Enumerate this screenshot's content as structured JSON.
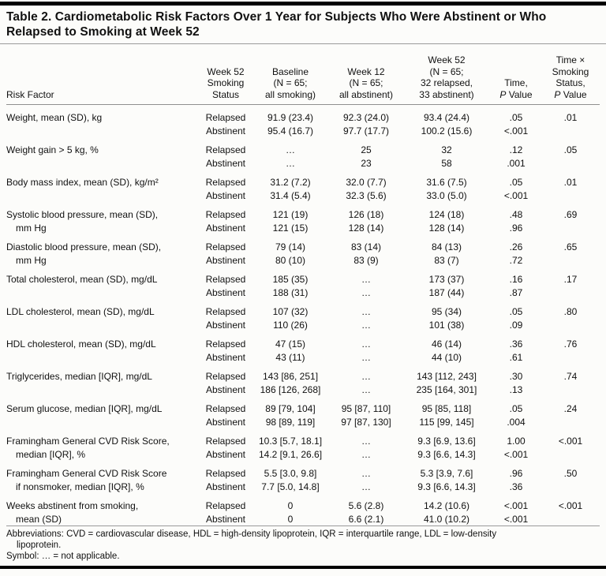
{
  "title": "Table 2. Cardiometabolic Risk Factors Over 1 Year for Subjects Who Were Abstinent or Who\nRelapsed to Smoking at Week 52",
  "header": {
    "risk_factor": "Risk Factor",
    "smoking_status": [
      "Week 52",
      "Smoking",
      "Status"
    ],
    "baseline": [
      "Baseline",
      "(N = 65;",
      "all smoking)"
    ],
    "week12": [
      "Week 12",
      "(N = 65;",
      "all abstinent)"
    ],
    "week52": [
      "Week 52",
      "(N = 65;",
      "32 relapsed,",
      "33 abstinent)"
    ],
    "time_p": {
      "lines": [
        "Time,"
      ],
      "p": "P",
      "value": " Value"
    },
    "interaction_p": {
      "lines": [
        "Time ×",
        "Smoking",
        "Status,"
      ],
      "p": "P",
      "value": " Value"
    }
  },
  "rows": [
    {
      "factor": "Weight, mean (SD), kg",
      "sub": [
        {
          "status": "Relapsed",
          "baseline": "91.9 (23.4)",
          "week12": "92.3 (24.0)",
          "week52": "93.4 (24.4)",
          "time_p": ".05",
          "interaction_p": ".01"
        },
        {
          "status": "Abstinent",
          "baseline": "95.4 (16.7)",
          "week12": "97.7 (17.7)",
          "week52": "100.2 (15.6)",
          "time_p": "<.001",
          "interaction_p": ""
        }
      ]
    },
    {
      "factor": "Weight gain > 5 kg, %",
      "sub": [
        {
          "status": "Relapsed",
          "baseline": "…",
          "week12": "25",
          "week52": "32",
          "time_p": ".12",
          "interaction_p": ".05"
        },
        {
          "status": "Abstinent",
          "baseline": "…",
          "week12": "23",
          "week52": "58",
          "time_p": ".001",
          "interaction_p": ""
        }
      ]
    },
    {
      "factor": "Body mass index, mean (SD), kg/m²",
      "sub": [
        {
          "status": "Relapsed",
          "baseline": "31.2 (7.2)",
          "week12": "32.0 (7.7)",
          "week52": "31.6 (7.5)",
          "time_p": ".05",
          "interaction_p": ".01"
        },
        {
          "status": "Abstinent",
          "baseline": "31.4 (5.4)",
          "week12": "32.3 (5.6)",
          "week52": "33.0 (5.0)",
          "time_p": "<.001",
          "interaction_p": ""
        }
      ]
    },
    {
      "factor": "Systolic blood pressure, mean (SD),\nmm Hg",
      "sub": [
        {
          "status": "Relapsed",
          "baseline": "121 (19)",
          "week12": "126 (18)",
          "week52": "124 (18)",
          "time_p": ".48",
          "interaction_p": ".69"
        },
        {
          "status": "Abstinent",
          "baseline": "121 (15)",
          "week12": "128 (14)",
          "week52": "128 (14)",
          "time_p": ".96",
          "interaction_p": ""
        }
      ]
    },
    {
      "factor": "Diastolic blood pressure, mean (SD),\nmm Hg",
      "sub": [
        {
          "status": "Relapsed",
          "baseline": "79 (14)",
          "week12": "83 (14)",
          "week52": "84 (13)",
          "time_p": ".26",
          "interaction_p": ".65"
        },
        {
          "status": "Abstinent",
          "baseline": "80 (10)",
          "week12": "83 (9)",
          "week52": "83 (7)",
          "time_p": ".72",
          "interaction_p": ""
        }
      ]
    },
    {
      "factor": "Total cholesterol, mean (SD), mg/dL",
      "sub": [
        {
          "status": "Relapsed",
          "baseline": "185 (35)",
          "week12": "…",
          "week52": "173 (37)",
          "time_p": ".16",
          "interaction_p": ".17"
        },
        {
          "status": "Abstinent",
          "baseline": "188 (31)",
          "week12": "…",
          "week52": "187 (44)",
          "time_p": ".87",
          "interaction_p": ""
        }
      ]
    },
    {
      "factor": "LDL cholesterol, mean (SD), mg/dL",
      "sub": [
        {
          "status": "Relapsed",
          "baseline": "107 (32)",
          "week12": "…",
          "week52": "95 (34)",
          "time_p": ".05",
          "interaction_p": ".80"
        },
        {
          "status": "Abstinent",
          "baseline": "110 (26)",
          "week12": "…",
          "week52": "101 (38)",
          "time_p": ".09",
          "interaction_p": ""
        }
      ]
    },
    {
      "factor": "HDL cholesterol, mean (SD), mg/dL",
      "sub": [
        {
          "status": "Relapsed",
          "baseline": "47 (15)",
          "week12": "…",
          "week52": "46 (14)",
          "time_p": ".36",
          "interaction_p": ".76"
        },
        {
          "status": "Abstinent",
          "baseline": "43 (11)",
          "week12": "…",
          "week52": "44 (10)",
          "time_p": ".61",
          "interaction_p": ""
        }
      ]
    },
    {
      "factor": "Triglycerides, median [IQR], mg/dL",
      "sub": [
        {
          "status": "Relapsed",
          "baseline": "143 [86, 251]",
          "week12": "…",
          "week52": "143 [112, 243]",
          "time_p": ".30",
          "interaction_p": ".74"
        },
        {
          "status": "Abstinent",
          "baseline": "186 [126, 268]",
          "week12": "…",
          "week52": "235 [164, 301]",
          "time_p": ".13",
          "interaction_p": ""
        }
      ]
    },
    {
      "factor": "Serum glucose, median [IQR], mg/dL",
      "sub": [
        {
          "status": "Relapsed",
          "baseline": "89 [79, 104]",
          "week12": "95 [87, 110]",
          "week52": "95 [85, 118]",
          "time_p": ".05",
          "interaction_p": ".24"
        },
        {
          "status": "Abstinent",
          "baseline": "98 [89, 119]",
          "week12": "97 [87, 130]",
          "week52": "115 [99, 145]",
          "time_p": ".004",
          "interaction_p": ""
        }
      ]
    },
    {
      "factor": "Framingham General CVD Risk Score,\nmedian [IQR], %",
      "sub": [
        {
          "status": "Relapsed",
          "baseline": "10.3 [5.7, 18.1]",
          "week12": "…",
          "week52": "9.3 [6.9, 13.6]",
          "time_p": "1.00",
          "interaction_p": "<.001"
        },
        {
          "status": "Abstinent",
          "baseline": "14.2 [9.1, 26.6]",
          "week12": "…",
          "week52": "9.3 [6.6, 14.3]",
          "time_p": "<.001",
          "interaction_p": ""
        }
      ]
    },
    {
      "factor": "Framingham General CVD Risk Score\nif nonsmoker, median [IQR], %",
      "sub": [
        {
          "status": "Relapsed",
          "baseline": "5.5 [3.0, 9.8]",
          "week12": "…",
          "week52": "5.3 [3.9, 7.6]",
          "time_p": ".96",
          "interaction_p": ".50"
        },
        {
          "status": "Abstinent",
          "baseline": "7.7 [5.0, 14.8]",
          "week12": "…",
          "week52": "9.3 [6.6, 14.3]",
          "time_p": ".36",
          "interaction_p": ""
        }
      ]
    },
    {
      "factor": "Weeks abstinent from smoking,\nmean (SD)",
      "sub": [
        {
          "status": "Relapsed",
          "baseline": "0",
          "week12": "5.6 (2.8)",
          "week52": "14.2 (10.6)",
          "time_p": "<.001",
          "interaction_p": "<.001"
        },
        {
          "status": "Abstinent",
          "baseline": "0",
          "week12": "6.6 (2.1)",
          "week52": "41.0 (10.2)",
          "time_p": "<.001",
          "interaction_p": ""
        }
      ]
    }
  ],
  "footnotes": [
    "Abbreviations: CVD = cardiovascular disease, HDL = high-density lipoprotein, IQR = interquartile range, LDL = low-density\nlipoprotein.",
    "Symbol: … = not applicable."
  ]
}
